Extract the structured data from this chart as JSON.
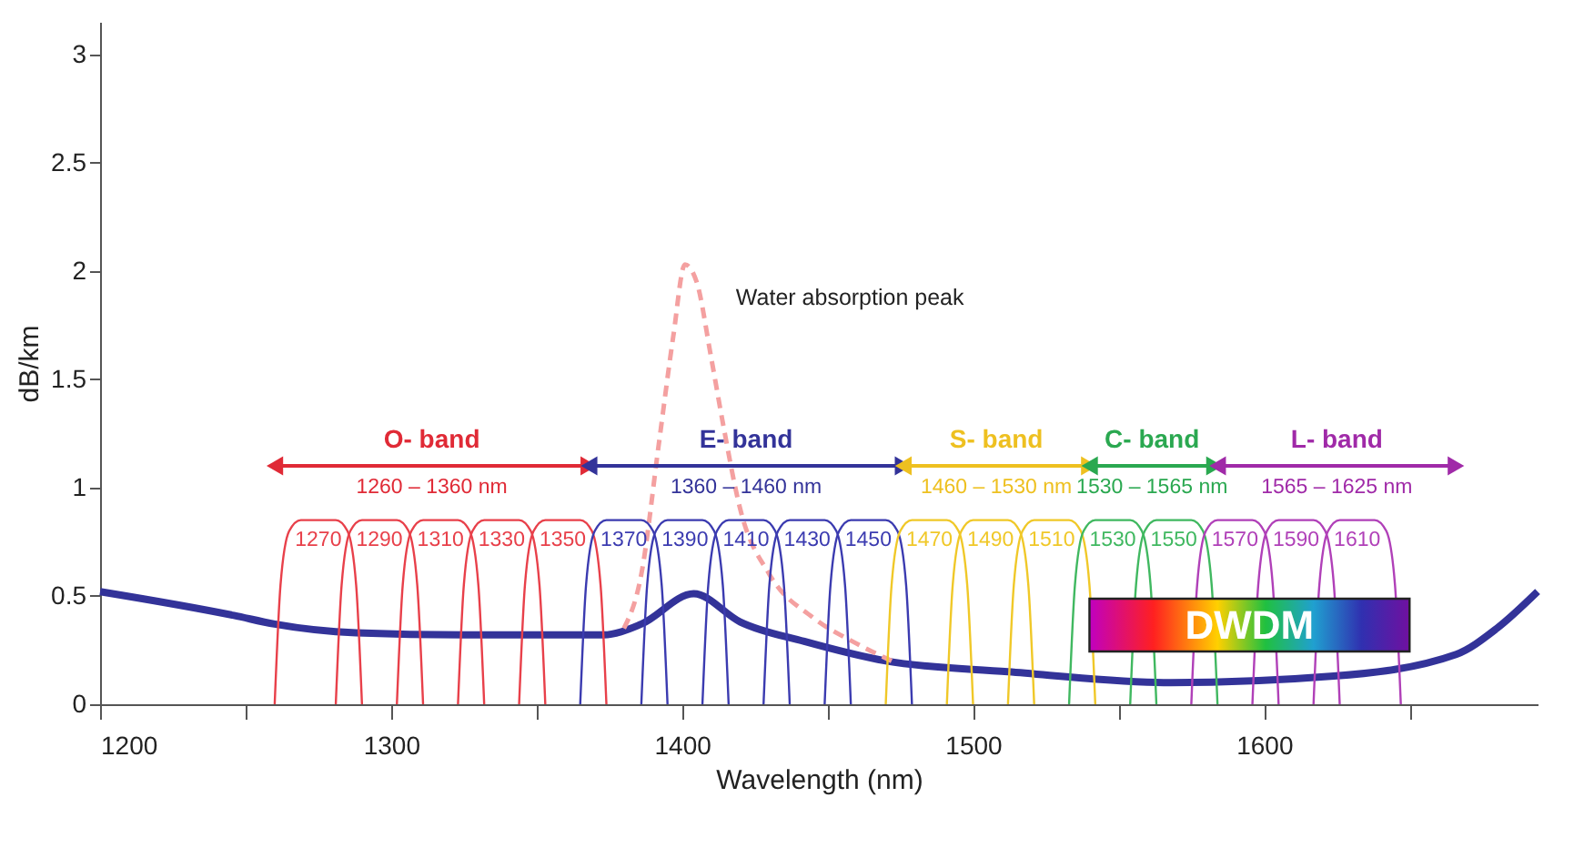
{
  "chart_data": {
    "type": "line",
    "xlabel": "Wavelength (nm)",
    "ylabel": "dB/km",
    "xlim": [
      1200,
      1694
    ],
    "ylim": [
      0,
      3.15
    ],
    "xticks": [
      1200,
      {
        "value": 1250,
        "label": null
      },
      1300,
      {
        "value": 1350,
        "label": null
      },
      1400,
      {
        "value": 1450,
        "label": null
      },
      1500,
      {
        "value": 1550,
        "label": null
      },
      1600,
      {
        "value": 1650,
        "label": null
      }
    ],
    "yticks": [
      0,
      0.5,
      1,
      1.5,
      2,
      2.5,
      3
    ],
    "grid": false,
    "series": [
      {
        "color": "#333399",
        "x": [
          1200,
          1246,
          1260,
          1288,
          1330,
          1373,
          1386,
          1404,
          1420,
          1442,
          1470,
          1512,
          1568,
          1624,
          1666,
          1680,
          1694
        ],
        "values": [
          0.52,
          0.41,
          0.37,
          0.33,
          0.32,
          0.32,
          0.37,
          0.51,
          0.38,
          0.29,
          0.2,
          0.15,
          0.1,
          0.13,
          0.23,
          0.35,
          0.52
        ]
      },
      {
        "color": "#f4a0a0",
        "line_style": "dashed",
        "x": [
          1380,
          1386,
          1392,
          1397,
          1401,
          1405,
          1410,
          1414,
          1420,
          1430,
          1445,
          1460,
          1472
        ],
        "values": [
          0.35,
          0.6,
          1.2,
          1.7,
          2.03,
          1.95,
          1.6,
          1.3,
          0.9,
          0.6,
          0.4,
          0.28,
          0.2
        ]
      },
      {
        "name": "1270",
        "color": "#e8404a",
        "x": [
          1260,
          1262,
          1265,
          1269,
          1281,
          1285,
          1288,
          1290
        ],
        "values": [
          0,
          0.55,
          0.8,
          0.85,
          0.85,
          0.8,
          0.55,
          0
        ]
      },
      {
        "name": "1290",
        "color": "#e8404a",
        "x": [
          1281,
          1283,
          1286,
          1290,
          1302,
          1306,
          1309,
          1311
        ],
        "values": [
          0,
          0.55,
          0.8,
          0.85,
          0.85,
          0.8,
          0.55,
          0
        ]
      },
      {
        "name": "1310",
        "color": "#e8404a",
        "x": [
          1302,
          1304,
          1307,
          1311,
          1323,
          1327,
          1330,
          1332
        ],
        "values": [
          0,
          0.55,
          0.8,
          0.85,
          0.85,
          0.8,
          0.55,
          0
        ]
      },
      {
        "name": "1330",
        "color": "#e8404a",
        "x": [
          1323,
          1325,
          1328,
          1332,
          1344,
          1348,
          1351,
          1353
        ],
        "values": [
          0,
          0.55,
          0.8,
          0.85,
          0.85,
          0.8,
          0.55,
          0
        ]
      },
      {
        "name": "1350",
        "color": "#e8404a",
        "x": [
          1344,
          1346,
          1349,
          1353,
          1365,
          1369,
          1372,
          1374
        ],
        "values": [
          0,
          0.55,
          0.8,
          0.85,
          0.85,
          0.8,
          0.55,
          0
        ]
      },
      {
        "name": "1370",
        "color": "#3b3bb0",
        "x": [
          1365,
          1367,
          1370,
          1374,
          1386,
          1390,
          1393,
          1395
        ],
        "values": [
          0,
          0.55,
          0.8,
          0.85,
          0.85,
          0.8,
          0.55,
          0
        ]
      },
      {
        "name": "1390",
        "color": "#3b3bb0",
        "x": [
          1386,
          1388,
          1391,
          1395,
          1407,
          1411,
          1414,
          1416
        ],
        "values": [
          0,
          0.55,
          0.8,
          0.85,
          0.85,
          0.8,
          0.55,
          0
        ]
      },
      {
        "name": "1410",
        "color": "#3b3bb0",
        "x": [
          1407,
          1409,
          1412,
          1416,
          1428,
          1432,
          1435,
          1437
        ],
        "values": [
          0,
          0.55,
          0.8,
          0.85,
          0.85,
          0.8,
          0.55,
          0
        ]
      },
      {
        "name": "1430",
        "color": "#3b3bb0",
        "x": [
          1428,
          1430,
          1433,
          1437,
          1449,
          1453,
          1456,
          1458
        ],
        "values": [
          0,
          0.55,
          0.8,
          0.85,
          0.85,
          0.8,
          0.55,
          0
        ]
      },
      {
        "name": "1450",
        "color": "#3b3bb0",
        "x": [
          1449,
          1451,
          1454,
          1458,
          1470,
          1474,
          1477,
          1479
        ],
        "values": [
          0,
          0.55,
          0.8,
          0.85,
          0.85,
          0.8,
          0.55,
          0
        ]
      },
      {
        "name": "1470",
        "color": "#f0c828",
        "x": [
          1470,
          1472,
          1475,
          1479,
          1491,
          1495,
          1498,
          1500
        ],
        "values": [
          0,
          0.55,
          0.8,
          0.85,
          0.85,
          0.8,
          0.55,
          0
        ]
      },
      {
        "name": "1490",
        "color": "#f0c828",
        "x": [
          1491,
          1493,
          1496,
          1500,
          1512,
          1516,
          1519,
          1521
        ],
        "values": [
          0,
          0.55,
          0.8,
          0.85,
          0.85,
          0.8,
          0.55,
          0
        ]
      },
      {
        "name": "1510",
        "color": "#f0c828",
        "x": [
          1512,
          1514,
          1517,
          1521,
          1533,
          1537,
          1540,
          1542
        ],
        "values": [
          0,
          0.55,
          0.8,
          0.85,
          0.85,
          0.8,
          0.55,
          0
        ]
      },
      {
        "name": "1530",
        "color": "#40b860",
        "x": [
          1533,
          1535,
          1538,
          1542,
          1554,
          1558,
          1561,
          1563
        ],
        "values": [
          0,
          0.55,
          0.8,
          0.85,
          0.85,
          0.8,
          0.55,
          0
        ]
      },
      {
        "name": "1550",
        "color": "#40b860",
        "x": [
          1554,
          1556,
          1559,
          1563,
          1575,
          1579,
          1582,
          1584
        ],
        "values": [
          0,
          0.55,
          0.8,
          0.85,
          0.85,
          0.8,
          0.55,
          0
        ]
      },
      {
        "name": "1570",
        "color": "#b040b8",
        "x": [
          1575,
          1577,
          1580,
          1584,
          1596,
          1600,
          1603,
          1605
        ],
        "values": [
          0,
          0.55,
          0.8,
          0.85,
          0.85,
          0.8,
          0.55,
          0
        ]
      },
      {
        "name": "1590",
        "color": "#b040b8",
        "x": [
          1596,
          1598,
          1601,
          1605,
          1617,
          1621,
          1624,
          1626
        ],
        "values": [
          0,
          0.55,
          0.8,
          0.85,
          0.85,
          0.8,
          0.55,
          0
        ]
      },
      {
        "name": "1610",
        "color": "#b040b8",
        "x": [
          1617,
          1619,
          1622,
          1626,
          1638,
          1642,
          1645,
          1647
        ],
        "values": [
          0,
          0.55,
          0.8,
          0.85,
          0.85,
          0.8,
          0.55,
          0
        ]
      },
      {
        "name": "O- band",
        "color": "#e02a36",
        "marker": "triangle",
        "x": [
          1261,
          1367
        ],
        "values": [
          1.1,
          1.1
        ]
      },
      {
        "name": "E- band",
        "color": "#333399",
        "marker": "triangle",
        "x": [
          1369,
          1475
        ],
        "values": [
          1.1,
          1.1
        ]
      },
      {
        "name": "S- band",
        "color": "#eec020",
        "marker": "triangle",
        "x": [
          1477,
          1539
        ],
        "values": [
          1.1,
          1.1
        ]
      },
      {
        "name": "C- band",
        "color": "#2aa850",
        "marker": "triangle",
        "x": [
          1541,
          1582
        ],
        "values": [
          1.1,
          1.1
        ]
      },
      {
        "name": "L- band",
        "color": "#a02aa8",
        "marker": "triangle",
        "x": [
          1585,
          1665
        ],
        "values": [
          1.1,
          1.1
        ]
      }
    ],
    "bands": [
      {
        "axis": "x",
        "from": 1540,
        "to": 1650,
        "label": "DWDM"
      }
    ],
    "annotations": [
      "Water absorption peak",
      "1260 – 1360 nm",
      "1360 – 1460 nm",
      "1460 – 1530 nm",
      "1530 – 1565 nm",
      "1565 – 1625 nm"
    ]
  }
}
